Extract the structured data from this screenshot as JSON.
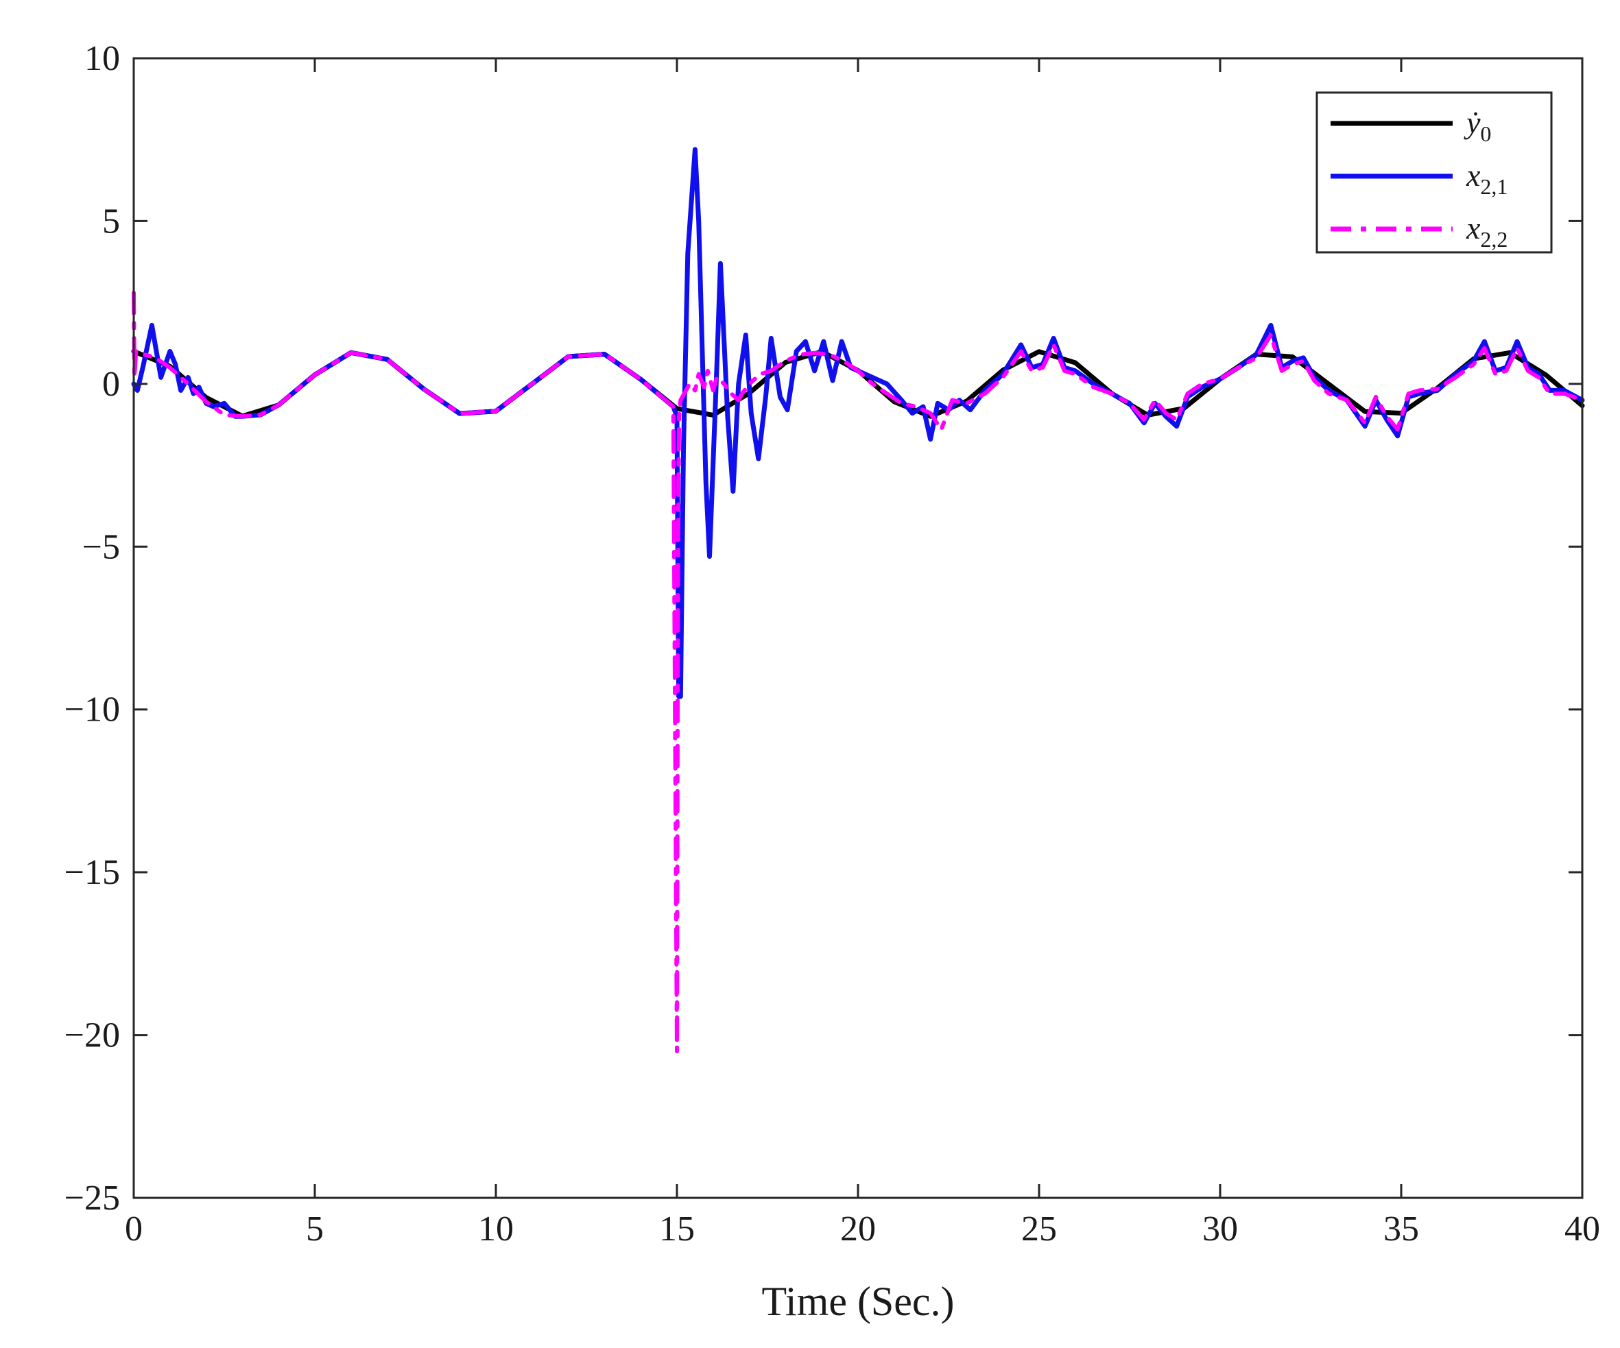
{
  "chart_data": {
    "type": "line",
    "xlabel": "Time (Sec.)",
    "ylabel": "",
    "xlim": [
      0,
      40
    ],
    "ylim": [
      -25,
      10
    ],
    "x_ticks": [
      "0",
      "5",
      "10",
      "15",
      "20",
      "25",
      "30",
      "35",
      "40"
    ],
    "y_ticks": [
      "10",
      "5",
      "0",
      "−5",
      "−10",
      "−15",
      "−20",
      "−25"
    ],
    "grid": false,
    "legend_position": "top-right",
    "series": [
      {
        "name": "ẏ",
        "name_sub": "0",
        "color": "#000000",
        "style": "solid",
        "x": [
          0,
          1,
          2,
          3,
          4,
          5,
          6,
          7,
          8,
          9,
          10,
          11,
          12,
          13,
          14,
          15,
          16,
          17,
          18,
          19,
          20,
          21,
          22,
          23,
          24,
          25,
          26,
          27,
          28,
          29,
          30,
          31,
          32,
          33,
          34,
          35,
          36,
          37,
          38,
          39,
          40
        ],
        "values": [
          1.0,
          0.54,
          -0.42,
          -0.99,
          -0.65,
          0.28,
          0.96,
          0.75,
          -0.15,
          -0.91,
          -0.84,
          0.0,
          0.84,
          0.91,
          0.14,
          -0.76,
          -0.96,
          -0.28,
          0.66,
          0.99,
          0.41,
          -0.55,
          -1.0,
          -0.53,
          0.42,
          0.99,
          0.65,
          -0.29,
          -0.96,
          -0.75,
          0.15,
          0.91,
          0.83,
          -0.01,
          -0.85,
          -0.9,
          -0.13,
          0.77,
          0.96,
          0.27,
          -0.67
        ]
      },
      {
        "name": "x",
        "name_sub": "2,1",
        "color": "#1010ee",
        "style": "solid",
        "x": [
          0,
          0.1,
          0.25,
          0.5,
          0.75,
          1.0,
          1.15,
          1.3,
          1.5,
          1.65,
          1.8,
          2.0,
          2.2,
          2.5,
          2.8,
          3.0,
          3.5,
          4,
          5,
          6,
          7,
          8,
          9,
          10,
          11,
          12,
          13,
          14,
          14.9,
          15.0,
          15.05,
          15.1,
          15.18,
          15.3,
          15.5,
          15.6,
          15.8,
          15.9,
          16.1,
          16.2,
          16.4,
          16.55,
          16.7,
          16.9,
          17.05,
          17.25,
          17.45,
          17.6,
          17.85,
          18.05,
          18.3,
          18.55,
          18.8,
          19.05,
          19.3,
          19.55,
          19.8,
          20.0,
          20.4,
          20.8,
          21.2,
          21.5,
          21.8,
          22.0,
          22.2,
          22.5,
          22.8,
          23.1,
          23.5,
          24.0,
          24.5,
          24.8,
          25.1,
          25.4,
          25.7,
          26.0,
          26.5,
          27.0,
          27.5,
          27.9,
          28.2,
          28.5,
          28.8,
          29.1,
          29.5,
          30.0,
          30.5,
          31.0,
          31.4,
          31.7,
          32.0,
          32.3,
          32.6,
          33.0,
          33.5,
          34.0,
          34.3,
          34.6,
          34.9,
          35.2,
          35.5,
          36.0,
          36.5,
          37.0,
          37.3,
          37.6,
          37.9,
          38.2,
          38.5,
          38.8,
          39.1,
          39.5,
          40.0
        ],
        "values": [
          0,
          -0.2,
          0.5,
          1.8,
          0.2,
          1.0,
          0.6,
          -0.2,
          0.2,
          -0.3,
          -0.1,
          -0.6,
          -0.7,
          -0.6,
          -1.0,
          -1.0,
          -0.95,
          -0.65,
          0.28,
          0.96,
          0.75,
          -0.15,
          -0.91,
          -0.84,
          0.0,
          0.84,
          0.91,
          0.14,
          -0.7,
          -1.0,
          -9.6,
          -9.6,
          -2.0,
          4.0,
          7.2,
          5.0,
          -3.0,
          -5.3,
          0.5,
          3.7,
          -1.0,
          -3.3,
          0.0,
          1.5,
          -0.9,
          -2.3,
          -0.4,
          1.4,
          -0.4,
          -0.8,
          1.0,
          1.3,
          0.4,
          1.3,
          0.1,
          1.3,
          0.5,
          0.4,
          0.2,
          0.0,
          -0.5,
          -0.9,
          -0.7,
          -1.7,
          -0.6,
          -0.8,
          -0.5,
          -0.8,
          -0.2,
          0.3,
          1.2,
          0.5,
          0.6,
          1.4,
          0.5,
          0.4,
          0.0,
          -0.3,
          -0.6,
          -1.2,
          -0.6,
          -1.0,
          -1.3,
          -0.4,
          -0.1,
          0.15,
          0.5,
          0.9,
          1.8,
          0.5,
          0.7,
          0.8,
          0.2,
          -0.2,
          -0.5,
          -1.3,
          -0.5,
          -1.1,
          -1.6,
          -0.4,
          -0.3,
          -0.2,
          0.3,
          0.7,
          1.3,
          0.4,
          0.5,
          1.3,
          0.5,
          0.3,
          -0.2,
          -0.2,
          -0.5
        ]
      },
      {
        "name": "x",
        "name_sub": "2,2",
        "color": "#ff00ff",
        "style": "dashdot",
        "x": [
          0,
          0.02,
          0.06,
          0.12,
          0.3,
          0.6,
          1.0,
          1.5,
          2.0,
          2.5,
          3.0,
          3.5,
          4,
          5,
          6,
          7,
          8,
          9,
          10,
          11,
          12,
          13,
          14,
          14.9,
          15.0,
          15.02,
          15.04,
          15.06,
          15.1,
          15.2,
          15.35,
          15.5,
          15.6,
          15.75,
          15.85,
          16.0,
          16.1,
          16.3,
          16.5,
          16.7,
          16.8,
          17.0,
          17.3,
          17.6,
          18.0,
          18.4,
          18.8,
          19.2,
          19.6,
          20.0,
          20.4,
          20.8,
          21.2,
          21.6,
          22.0,
          22.3,
          22.6,
          23.0,
          23.5,
          24.0,
          24.5,
          24.8,
          25.1,
          25.4,
          25.7,
          26.0,
          26.5,
          27.0,
          27.5,
          27.9,
          28.2,
          28.5,
          28.8,
          29.1,
          29.5,
          30.0,
          30.5,
          31.0,
          31.4,
          31.7,
          32.0,
          32.3,
          32.6,
          33.0,
          33.5,
          34.0,
          34.3,
          34.6,
          34.9,
          35.2,
          35.5,
          36.0,
          36.5,
          37.0,
          37.3,
          37.6,
          37.9,
          38.2,
          38.5,
          38.8,
          39.1,
          39.5,
          40.0
        ],
        "values": [
          2.8,
          0.2,
          1.0,
          1.0,
          0.9,
          0.8,
          0.5,
          0.0,
          -0.55,
          -0.95,
          -1.0,
          -0.95,
          -0.65,
          0.28,
          0.96,
          0.75,
          -0.15,
          -0.91,
          -0.84,
          0.0,
          0.84,
          0.91,
          0.14,
          -0.7,
          -20.5,
          -9.0,
          -3.0,
          -1.0,
          -0.5,
          -0.3,
          0.0,
          -0.2,
          0.3,
          -0.1,
          0.4,
          -0.2,
          0.2,
          0.0,
          -0.3,
          -0.5,
          -0.3,
          0.0,
          0.3,
          0.4,
          0.7,
          0.9,
          0.95,
          0.9,
          0.7,
          0.4,
          0.0,
          -0.3,
          -0.6,
          -0.7,
          -0.9,
          -1.4,
          -0.5,
          -0.6,
          -0.3,
          0.2,
          1.0,
          0.4,
          0.5,
          1.2,
          0.4,
          0.3,
          -0.1,
          -0.3,
          -0.6,
          -1.1,
          -0.5,
          -0.9,
          -1.1,
          -0.3,
          0.0,
          0.15,
          0.5,
          0.8,
          1.5,
          0.4,
          0.6,
          0.7,
          0.1,
          -0.3,
          -0.5,
          -1.2,
          -0.4,
          -1.0,
          -1.4,
          -0.3,
          -0.2,
          -0.15,
          0.2,
          0.6,
          1.1,
          0.3,
          0.4,
          1.1,
          0.4,
          0.2,
          -0.3,
          -0.3,
          -0.5
        ]
      }
    ]
  }
}
